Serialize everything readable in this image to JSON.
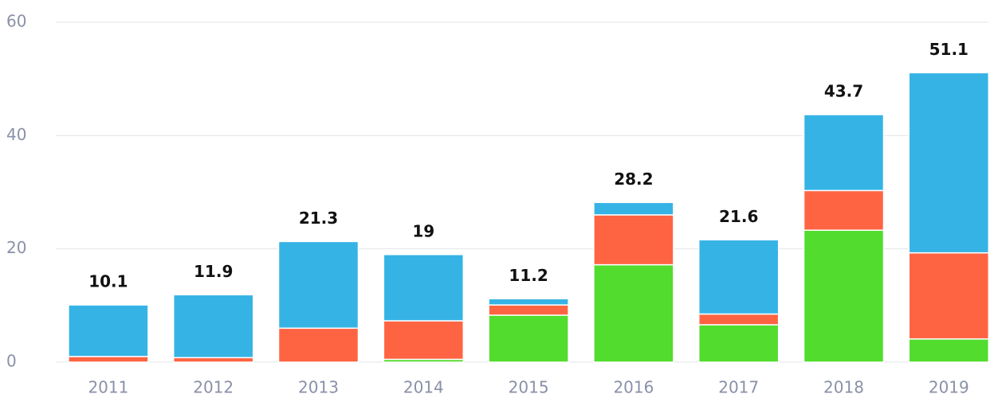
{
  "chart_data": {
    "type": "stacked_bar",
    "categories": [
      "2011",
      "2012",
      "2013",
      "2014",
      "2015",
      "2016",
      "2017",
      "2018",
      "2019"
    ],
    "series": [
      {
        "color": "#52dc2d",
        "values": [
          0,
          0,
          0,
          0.5,
          8.3,
          17.2,
          6.6,
          23.3,
          4.1
        ]
      },
      {
        "color": "#ff6442",
        "values": [
          1.0,
          0.8,
          6.0,
          6.8,
          1.8,
          8.8,
          1.9,
          7.0,
          15.2
        ]
      },
      {
        "color": "#36b3e5",
        "values": [
          9.1,
          11.1,
          15.3,
          11.7,
          1.1,
          2.2,
          13.1,
          13.4,
          31.8
        ]
      }
    ],
    "totals": [
      10.1,
      11.9,
      21.3,
      19,
      11.2,
      28.2,
      21.6,
      43.7,
      51.1
    ],
    "ylim": [
      0,
      60
    ],
    "yticks": [
      0,
      20,
      40,
      60
    ],
    "grid": true
  }
}
